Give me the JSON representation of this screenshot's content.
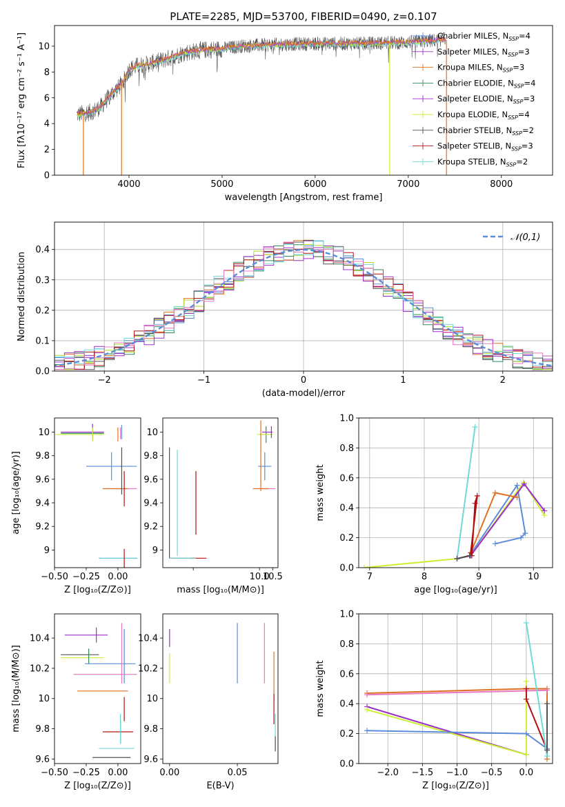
{
  "colors": {
    "chabrier_miles": "#5b8bd8",
    "salpeter_miles": "#9b30c8",
    "kroupa_miles": "#e07020",
    "chabrier_elodie": "#2e8b57",
    "salpeter_elodie": "#a02cd0",
    "kroupa_elodie": "#ccee33",
    "chabrier_stelib": "#505050",
    "salpeter_stelib": "#b01010",
    "kroupa_stelib": "#70d8d8",
    "pink": "#e878c0",
    "hist_orange": "#e07020",
    "hist_yellowgreen": "#aadd22",
    "grid": "#b0b0b0"
  },
  "chart_data": [
    {
      "id": "spectrum",
      "type": "line",
      "title": "PLATE=2285, MJD=53700, FIBERID=0490, z=0.107",
      "xlabel": "wavelength [Angstrom, rest frame]",
      "ylabel": "Flux [fλ10⁻¹⁷ erg cm⁻² s⁻¹ A⁻¹]",
      "xlim": [
        3200,
        8550
      ],
      "ylim": [
        0,
        11.6
      ],
      "xticks": [
        4000,
        5000,
        6000,
        7000,
        8000
      ],
      "yticks": [
        0,
        2,
        4,
        6,
        8,
        10
      ],
      "grid": false,
      "legend_position": "right",
      "legend": [
        {
          "label": "Chabrier MILES, N",
          "sub": "SSP",
          "suffix": "=4",
          "color": "chabrier_miles"
        },
        {
          "label": "Salpeter MILES, N",
          "sub": "SSP",
          "suffix": "=3",
          "color": "salpeter_miles"
        },
        {
          "label": "Kroupa MILES, N",
          "sub": "SSP",
          "suffix": "=3",
          "color": "kroupa_miles"
        },
        {
          "label": "Chabrier ELODIE, N",
          "sub": "SSP",
          "suffix": "=4",
          "color": "chabrier_elodie"
        },
        {
          "label": "Salpeter ELODIE, N",
          "sub": "SSP",
          "suffix": "=3",
          "color": "salpeter_elodie"
        },
        {
          "label": "Kroupa ELODIE, N",
          "sub": "SSP",
          "suffix": "=4",
          "color": "kroupa_elodie"
        },
        {
          "label": "Chabrier STELIB, N",
          "sub": "SSP",
          "suffix": "=2",
          "color": "chabrier_stelib"
        },
        {
          "label": "Salpeter STELIB, N",
          "sub": "SSP",
          "suffix": "=3",
          "color": "salpeter_stelib"
        },
        {
          "label": "Kroupa STELIB, N",
          "sub": "SSP",
          "suffix": "=2",
          "color": "kroupa_stelib"
        }
      ],
      "continuum": {
        "x": [
          3440,
          3600,
          3700,
          3800,
          3900,
          3950,
          4000,
          4100,
          4200,
          4400,
          4600,
          4800,
          5000,
          5200,
          5500,
          6000,
          6500,
          7000,
          7400
        ],
        "y": [
          4.7,
          4.9,
          5.3,
          6.2,
          6.9,
          7.4,
          8.2,
          8.5,
          8.6,
          9.0,
          9.5,
          9.7,
          9.8,
          10.0,
          10.1,
          10.2,
          10.2,
          10.3,
          10.5
        ]
      },
      "drops": [
        {
          "x": 3510,
          "y": 0,
          "color": "kroupa_miles"
        },
        {
          "x": 3920,
          "y": 0,
          "color": "kroupa_miles"
        },
        {
          "x": 6800,
          "y": 0,
          "color": "kroupa_elodie"
        },
        {
          "x": 7410,
          "y": 0,
          "color": "kroupa_miles"
        }
      ],
      "noise_color": "chabrier_stelib"
    },
    {
      "id": "residuals",
      "type": "histogram",
      "xlabel": "(data-model)/error",
      "ylabel": "Normed distribution",
      "xlim": [
        -2.5,
        2.5
      ],
      "ylim": [
        0,
        0.49
      ],
      "xticks": [
        -2,
        -1,
        0,
        1,
        2
      ],
      "yticks": [
        0.0,
        0.1,
        0.2,
        0.3,
        0.4
      ],
      "grid": true,
      "legend_position": "top-right",
      "legend_label": "𝒩(0,1)",
      "bin_width": 0.1,
      "gaussian": {
        "mean": 0,
        "sigma": 1,
        "color": "chabrier_miles",
        "dash": true
      },
      "series_colors": [
        "chabrier_miles",
        "salpeter_miles",
        "hist_orange",
        "chabrier_elodie",
        "salpeter_elodie",
        "hist_yellowgreen",
        "chabrier_stelib",
        "salpeter_stelib",
        "kroupa_stelib",
        "pink"
      ]
    },
    {
      "id": "age_vs_Z",
      "type": "scatter",
      "xlabel": "Z [log₁₀(Z/Z⊙)]",
      "ylabel": "age  [log₁₀(age/yr)]",
      "xlim": [
        -0.5,
        0.18
      ],
      "ylim": [
        8.85,
        10.12
      ],
      "xticks": [
        -0.5,
        -0.25,
        0.0
      ],
      "xticklabels": [
        "−0.50",
        "−0.25",
        "0.00"
      ],
      "yticks": [
        9.0,
        9.2,
        9.4,
        9.6,
        9.8,
        10.0
      ],
      "grid": false,
      "points": [
        {
          "x": -0.28,
          "y": 10.0,
          "xerr": 0.17,
          "yerr": 0.0,
          "color": "salpeter_miles"
        },
        {
          "x": -0.28,
          "y": 9.99,
          "xerr": 0.17,
          "yerr": 0.0,
          "color": "chabrier_elodie"
        },
        {
          "x": -0.3,
          "y": 9.98,
          "xerr": 0.19,
          "yerr": 0.0,
          "color": "kroupa_elodie"
        },
        {
          "x": -0.2,
          "y": 10.0,
          "xerr": 0.0,
          "yerr": 0.07,
          "color": "salpeter_elodie"
        },
        {
          "x": -0.2,
          "y": 9.98,
          "xerr": 0.0,
          "yerr": 0.06,
          "color": "kroupa_elodie"
        },
        {
          "x": 0.03,
          "y": 10.0,
          "xerr": 0.0,
          "yerr": 0.06,
          "color": "chabrier_miles"
        },
        {
          "x": 0.02,
          "y": 9.99,
          "xerr": 0.0,
          "yerr": 0.05,
          "color": "pink"
        },
        {
          "x": 0.0,
          "y": 9.98,
          "xerr": 0.0,
          "yerr": 0.06,
          "color": "kroupa_miles"
        },
        {
          "x": -0.05,
          "y": 9.71,
          "xerr": 0.2,
          "yerr": 0.12,
          "color": "chabrier_miles"
        },
        {
          "x": 0.05,
          "y": 9.52,
          "xerr": 0.1,
          "yerr": 0.0,
          "color": "pink"
        },
        {
          "x": -0.02,
          "y": 9.52,
          "xerr": 0.1,
          "yerr": 0.0,
          "color": "kroupa_miles"
        },
        {
          "x": 0.05,
          "y": 9.52,
          "xerr": 0.0,
          "yerr": 0.15,
          "color": "salpeter_stelib"
        },
        {
          "x": 0.03,
          "y": 9.67,
          "xerr": 0.0,
          "yerr": 0.2,
          "color": "chabrier_stelib"
        },
        {
          "x": 0.0,
          "y": 8.93,
          "xerr": 0.15,
          "yerr": 0.0,
          "color": "chabrier_miles"
        },
        {
          "x": 0.0,
          "y": 8.93,
          "xerr": 0.14,
          "yerr": 0.0,
          "color": "kroupa_stelib"
        },
        {
          "x": 0.05,
          "y": 8.93,
          "xerr": 0.0,
          "yerr": 0.08,
          "color": "salpeter_stelib"
        }
      ]
    },
    {
      "id": "age_vs_mass",
      "type": "scatter",
      "xlabel": "mass [log₁₀(M/M⊙)]",
      "ylabel": "",
      "xlim": [
        6.35,
        10.7
      ],
      "ylim": [
        8.85,
        10.12
      ],
      "xticks": [
        7.5,
        10.0,
        10.5
      ],
      "xticklabels": [
        "",
        "10.0",
        "10.5"
      ],
      "yticks": [
        9.0,
        9.2,
        9.4,
        9.6,
        9.8,
        10.0
      ],
      "grid": false,
      "points": [
        {
          "x": 10.3,
          "y": 10.0,
          "xerr": 0.2,
          "yerr": 0.0,
          "color": "salpeter_miles"
        },
        {
          "x": 10.25,
          "y": 9.98,
          "xerr": 0.25,
          "yerr": 0.07,
          "color": "chabrier_elodie"
        },
        {
          "x": 10.2,
          "y": 9.98,
          "xerr": 0.3,
          "yerr": 0.0,
          "color": "kroupa_elodie"
        },
        {
          "x": 10.45,
          "y": 10.0,
          "xerr": 0.0,
          "yerr": 0.05,
          "color": "salpeter_elodie"
        },
        {
          "x": 10.2,
          "y": 9.71,
          "xerr": 0.25,
          "yerr": 0.12,
          "color": "chabrier_miles"
        },
        {
          "x": 10.05,
          "y": 9.8,
          "xerr": 0.0,
          "yerr": 0.3,
          "color": "kroupa_miles"
        },
        {
          "x": 10.3,
          "y": 9.52,
          "xerr": 0.3,
          "yerr": 0.0,
          "color": "pink"
        },
        {
          "x": 10.05,
          "y": 9.52,
          "xerr": 0.3,
          "yerr": 0.0,
          "color": "kroupa_miles"
        },
        {
          "x": 6.6,
          "y": 9.4,
          "xerr": 0.0,
          "yerr": 0.47,
          "color": "chabrier_stelib"
        },
        {
          "x": 6.9,
          "y": 9.4,
          "xerr": 0.0,
          "yerr": 0.45,
          "color": "kroupa_stelib"
        },
        {
          "x": 7.6,
          "y": 9.4,
          "xerr": 0.0,
          "yerr": 0.27,
          "color": "salpeter_stelib"
        },
        {
          "x": 7.1,
          "y": 8.93,
          "xerr": 0.5,
          "yerr": 0.0,
          "color": "chabrier_stelib"
        },
        {
          "x": 7.7,
          "y": 8.93,
          "xerr": 0.3,
          "yerr": 0.0,
          "color": "salpeter_stelib"
        },
        {
          "x": 7.1,
          "y": 8.93,
          "xerr": 0.5,
          "yerr": 0.0,
          "color": "kroupa_stelib"
        }
      ]
    },
    {
      "id": "weight_vs_age",
      "type": "line",
      "xlabel": "age  [log₁₀(age/yr)]",
      "ylabel": "mass weight",
      "xlim": [
        6.8,
        10.35
      ],
      "ylim": [
        0,
        1.0
      ],
      "xticks": [
        7,
        8,
        9,
        10
      ],
      "yticks": [
        0.0,
        0.2,
        0.4,
        0.6,
        0.8,
        1.0
      ],
      "grid": true,
      "series": [
        {
          "color": "chabrier_miles",
          "x": [
            8.6,
            8.83,
            9.7,
            9.85,
            9.77,
            9.3
          ],
          "y": [
            0.06,
            0.08,
            0.55,
            0.23,
            0.2,
            0.16
          ]
        },
        {
          "color": "kroupa_elodie",
          "x": [
            6.9,
            8.6,
            8.85,
            9.82,
            10.2
          ],
          "y": [
            0.0,
            0.06,
            0.08,
            0.57,
            0.35
          ]
        },
        {
          "color": "salpeter_elodie",
          "x": [
            8.6,
            8.85,
            9.83,
            10.2
          ],
          "y": [
            0.06,
            0.08,
            0.56,
            0.38
          ]
        },
        {
          "color": "kroupa_miles",
          "x": [
            8.83,
            9.3,
            9.7
          ],
          "y": [
            0.08,
            0.5,
            0.47
          ]
        },
        {
          "color": "salpeter_stelib",
          "x": [
            8.87,
            8.93,
            8.97,
            8.85
          ],
          "y": [
            0.08,
            0.43,
            0.48,
            0.1
          ]
        },
        {
          "color": "kroupa_stelib",
          "x": [
            8.6,
            8.93
          ],
          "y": [
            0.06,
            0.94
          ]
        },
        {
          "color": "chabrier_stelib",
          "x": [
            8.6,
            8.83
          ],
          "y": [
            0.06,
            0.08
          ]
        }
      ]
    },
    {
      "id": "mass_vs_Z",
      "type": "scatter",
      "xlabel": "Z [log₁₀(Z/Z⊙)]",
      "ylabel": "mass [log₁₀(M/M⊙)]",
      "xlim": [
        -0.5,
        0.18
      ],
      "ylim": [
        9.57,
        10.56
      ],
      "xticks": [
        -0.5,
        -0.25,
        0.0
      ],
      "xticklabels": [
        "−0.50",
        "−0.25",
        "0.00"
      ],
      "yticks": [
        9.6,
        9.8,
        10.0,
        10.2,
        10.4
      ],
      "grid": false,
      "points": [
        {
          "x": -0.25,
          "y": 10.42,
          "xerr": 0.17,
          "yerr": 0.0,
          "color": "salpeter_miles"
        },
        {
          "x": -0.17,
          "y": 10.42,
          "xerr": 0.0,
          "yerr": 0.05,
          "color": "salpeter_miles"
        },
        {
          "x": -0.3,
          "y": 10.29,
          "xerr": 0.15,
          "yerr": 0.0,
          "color": "chabrier_stelib"
        },
        {
          "x": -0.28,
          "y": 10.27,
          "xerr": 0.17,
          "yerr": 0.0,
          "color": "kroupa_elodie"
        },
        {
          "x": -0.23,
          "y": 10.28,
          "xerr": 0.0,
          "yerr": 0.05,
          "color": "chabrier_elodie"
        },
        {
          "x": -0.06,
          "y": 10.23,
          "xerr": 0.2,
          "yerr": 0.0,
          "color": "chabrier_miles"
        },
        {
          "x": 0.05,
          "y": 10.28,
          "xerr": 0.0,
          "yerr": 0.18,
          "color": "chabrier_miles"
        },
        {
          "x": 0.03,
          "y": 10.3,
          "xerr": 0.0,
          "yerr": 0.2,
          "color": "pink"
        },
        {
          "x": -0.1,
          "y": 10.16,
          "xerr": 0.25,
          "yerr": 0.0,
          "color": "pink"
        },
        {
          "x": -0.12,
          "y": 10.05,
          "xerr": 0.2,
          "yerr": 0.0,
          "color": "kroupa_miles"
        },
        {
          "x": 0.05,
          "y": 9.93,
          "xerr": 0.0,
          "yerr": 0.08,
          "color": "salpeter_stelib"
        },
        {
          "x": 0.0,
          "y": 9.78,
          "xerr": 0.12,
          "yerr": 0.0,
          "color": "salpeter_stelib"
        },
        {
          "x": 0.02,
          "y": 9.78,
          "xerr": 0.0,
          "yerr": 0.08,
          "color": "salpeter_stelib"
        },
        {
          "x": 0.02,
          "y": 9.8,
          "xerr": 0.0,
          "yerr": 0.1,
          "color": "kroupa_stelib"
        },
        {
          "x": -0.01,
          "y": 9.67,
          "xerr": 0.14,
          "yerr": 0.0,
          "color": "kroupa_stelib"
        },
        {
          "x": -0.05,
          "y": 9.61,
          "xerr": 0.15,
          "yerr": 0.0,
          "color": "chabrier_stelib"
        }
      ]
    },
    {
      "id": "mass_vs_EBV",
      "type": "scatter",
      "xlabel": "E(B-V)",
      "ylabel": "",
      "xlim": [
        -0.005,
        0.08
      ],
      "ylim": [
        9.57,
        10.56
      ],
      "xticks": [
        0.0,
        0.05
      ],
      "xticklabels": [
        "0.00",
        "0.05"
      ],
      "yticks": [
        9.6,
        9.8,
        10.0,
        10.2,
        10.4
      ],
      "grid": false,
      "points": [
        {
          "x": 0.0,
          "y": 10.4,
          "xerr": 0.0,
          "yerr": 0.06,
          "color": "salpeter_elodie"
        },
        {
          "x": 0.0,
          "y": 10.2,
          "xerr": 0.0,
          "yerr": 0.1,
          "color": "kroupa_elodie"
        },
        {
          "x": 0.05,
          "y": 10.3,
          "xerr": 0.0,
          "yerr": 0.2,
          "color": "chabrier_miles"
        },
        {
          "x": 0.07,
          "y": 10.3,
          "xerr": 0.0,
          "yerr": 0.2,
          "color": "pink"
        },
        {
          "x": 0.077,
          "y": 10.15,
          "xerr": 0.0,
          "yerr": 0.16,
          "color": "kroupa_miles"
        },
        {
          "x": 0.077,
          "y": 9.93,
          "xerr": 0.0,
          "yerr": 0.1,
          "color": "salpeter_stelib"
        },
        {
          "x": 0.078,
          "y": 9.78,
          "xerr": 0.0,
          "yerr": 0.12,
          "color": "kroupa_stelib"
        },
        {
          "x": 0.078,
          "y": 9.7,
          "xerr": 0.0,
          "yerr": 0.05,
          "color": "chabrier_stelib"
        }
      ]
    },
    {
      "id": "weight_vs_Z",
      "type": "line",
      "xlabel": "Z [log₁₀(Z/Z⊙)]",
      "ylabel": "mass weight",
      "xlim": [
        -2.42,
        0.38
      ],
      "ylim": [
        0,
        1.0
      ],
      "xticks": [
        -2.0,
        -1.5,
        -1.0,
        -0.5,
        0.0
      ],
      "xticklabels": [
        "−2.0",
        "−1.5",
        "−1.0",
        "−0.5",
        "0.0"
      ],
      "yticks": [
        0.0,
        0.2,
        0.4,
        0.6,
        0.8,
        1.0
      ],
      "grid": true,
      "series": [
        {
          "color": "kroupa_miles",
          "x": [
            -2.3,
            0.0,
            0.3,
            0.3
          ],
          "y": [
            0.47,
            0.5,
            0.5,
            0.03
          ]
        },
        {
          "color": "pink",
          "x": [
            -2.3,
            0.3
          ],
          "y": [
            0.46,
            0.49
          ]
        },
        {
          "color": "salpeter_miles",
          "x": [
            -2.3,
            0.0
          ],
          "y": [
            0.38,
            0.06
          ]
        },
        {
          "color": "kroupa_elodie",
          "x": [
            -2.3,
            0.0,
            0.0
          ],
          "y": [
            0.36,
            0.06,
            0.55
          ]
        },
        {
          "color": "chabrier_miles",
          "x": [
            -2.3,
            0.0,
            0.3
          ],
          "y": [
            0.22,
            0.2,
            0.1
          ]
        },
        {
          "color": "salpeter_stelib",
          "x": [
            0.0,
            0.0,
            0.3
          ],
          "y": [
            0.5,
            0.43,
            0.09
          ]
        },
        {
          "color": "kroupa_stelib",
          "x": [
            0.0,
            0.3
          ],
          "y": [
            0.94,
            0.05
          ]
        },
        {
          "color": "chabrier_stelib",
          "x": [
            0.3,
            0.3
          ],
          "y": [
            0.4,
            0.09
          ]
        }
      ]
    }
  ]
}
